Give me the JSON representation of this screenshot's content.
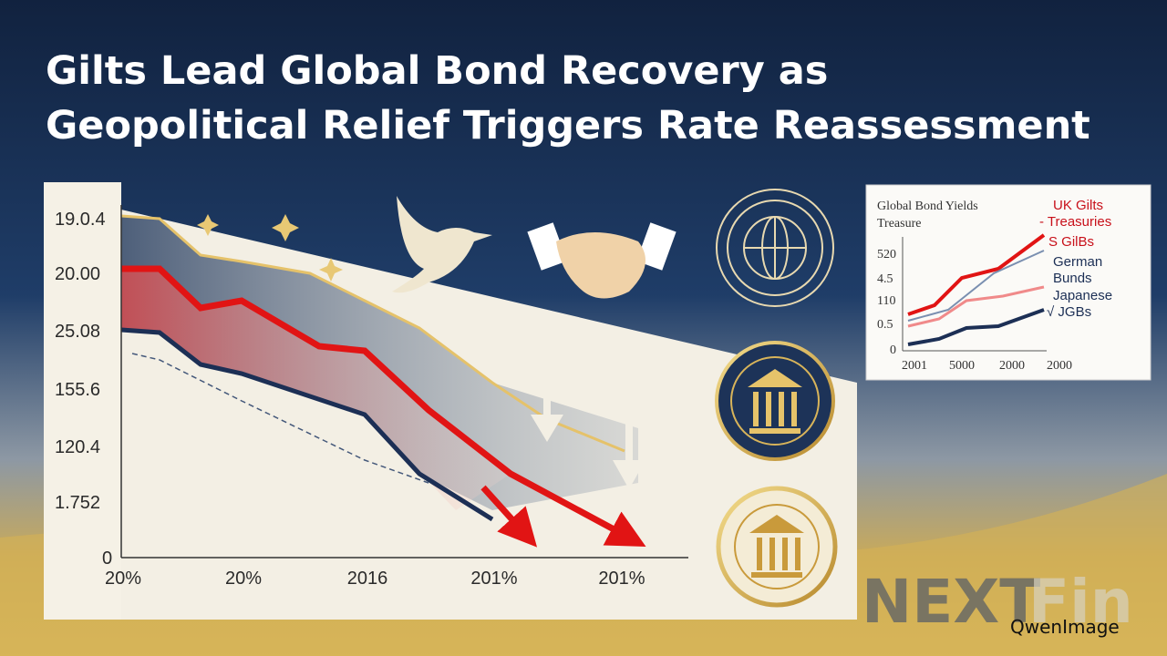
{
  "header": {
    "title_lines": [
      "Gilts Lead Global Bond Recovery as",
      "Geopolitical Relief Triggers Rate Reassessment"
    ]
  },
  "main_chart": {
    "y_labels": [
      "19.0.4",
      "20.00",
      "25.08",
      "155.6",
      "120.4",
      "1.752",
      "0"
    ],
    "x_labels": [
      "20%",
      "20%",
      "2016",
      "201%",
      "201%"
    ]
  },
  "inset_chart": {
    "title": "Global Bond Yields",
    "subtitle": "Treasure",
    "legend": [
      "UK Gilts",
      "- Treasuries",
      "S GilBs",
      "German",
      "Bunds",
      "Japanese",
      "√ JGBs"
    ],
    "y_labels": [
      "520",
      "4.5",
      "110",
      "0.5",
      "0"
    ],
    "x_labels": [
      "2001",
      "5000",
      "2000",
      "2000"
    ]
  },
  "brand": {
    "logo": "NEXT",
    "logo_suffix": "Fin",
    "watermark": "QwenImage"
  }
}
